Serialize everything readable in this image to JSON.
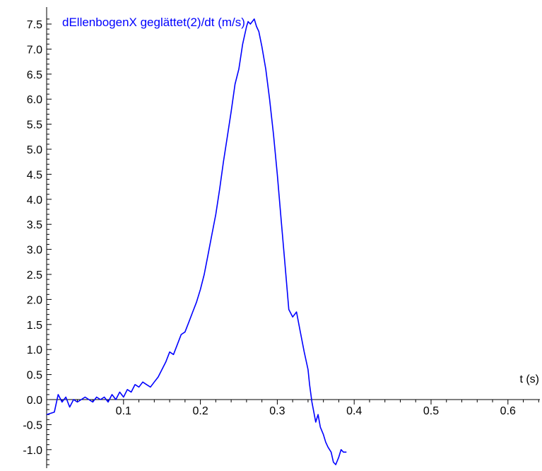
{
  "chart_data": {
    "type": "line",
    "title": "",
    "xlabel": "t (s)",
    "ylabel": "",
    "xlim": [
      0.0,
      0.65
    ],
    "ylim": [
      -1.35,
      7.6
    ],
    "grid": false,
    "legend": "none",
    "x_ticks": [
      "0.1",
      "0.2",
      "0.3",
      "0.4",
      "0.5",
      "0.6"
    ],
    "y_ticks": [
      "7.5",
      "7.0",
      "6.5",
      "6.0",
      "5.5",
      "5.0",
      "4.5",
      "4.0",
      "3.5",
      "3.0",
      "2.5",
      "2.0",
      "1.5",
      "1.0",
      "0.5",
      "0.0",
      "-0.5",
      "-1.0"
    ],
    "series": [
      {
        "name": "dEllenbogenX geglättet(2)/dt (m/s)",
        "color": "#0000ff",
        "x": [
          0.0,
          0.01,
          0.015,
          0.02,
          0.025,
          0.03,
          0.035,
          0.04,
          0.045,
          0.05,
          0.055,
          0.06,
          0.065,
          0.07,
          0.075,
          0.08,
          0.085,
          0.09,
          0.095,
          0.1,
          0.105,
          0.11,
          0.115,
          0.12,
          0.125,
          0.13,
          0.135,
          0.14,
          0.145,
          0.15,
          0.155,
          0.16,
          0.165,
          0.17,
          0.175,
          0.18,
          0.185,
          0.19,
          0.195,
          0.2,
          0.205,
          0.21,
          0.215,
          0.22,
          0.225,
          0.23,
          0.235,
          0.24,
          0.245,
          0.25,
          0.255,
          0.26,
          0.262,
          0.265,
          0.27,
          0.273,
          0.276,
          0.28,
          0.285,
          0.29,
          0.295,
          0.3,
          0.305,
          0.31,
          0.315,
          0.32,
          0.325,
          0.33,
          0.335,
          0.34,
          0.342,
          0.345,
          0.35,
          0.353,
          0.356,
          0.36,
          0.363,
          0.366,
          0.37,
          0.373,
          0.376,
          0.38,
          0.383,
          0.386,
          0.39
        ],
        "y": [
          -0.3,
          -0.25,
          0.1,
          -0.05,
          0.05,
          -0.15,
          0.0,
          -0.05,
          0.0,
          0.05,
          0.0,
          -0.05,
          0.05,
          0.0,
          0.05,
          -0.05,
          0.1,
          0.0,
          0.15,
          0.05,
          0.2,
          0.15,
          0.3,
          0.25,
          0.35,
          0.3,
          0.25,
          0.35,
          0.45,
          0.6,
          0.75,
          0.95,
          0.9,
          1.1,
          1.3,
          1.35,
          1.55,
          1.75,
          1.95,
          2.2,
          2.5,
          2.9,
          3.3,
          3.7,
          4.2,
          4.75,
          5.25,
          5.75,
          6.3,
          6.6,
          7.1,
          7.45,
          7.55,
          7.5,
          7.6,
          7.45,
          7.35,
          7.05,
          6.6,
          6.0,
          5.3,
          4.5,
          3.6,
          2.7,
          1.8,
          1.65,
          1.75,
          1.35,
          0.95,
          0.6,
          0.3,
          -0.05,
          -0.45,
          -0.3,
          -0.55,
          -0.7,
          -0.85,
          -0.95,
          -1.05,
          -1.25,
          -1.3,
          -1.15,
          -1.0,
          -1.05,
          -1.05
        ]
      }
    ]
  }
}
